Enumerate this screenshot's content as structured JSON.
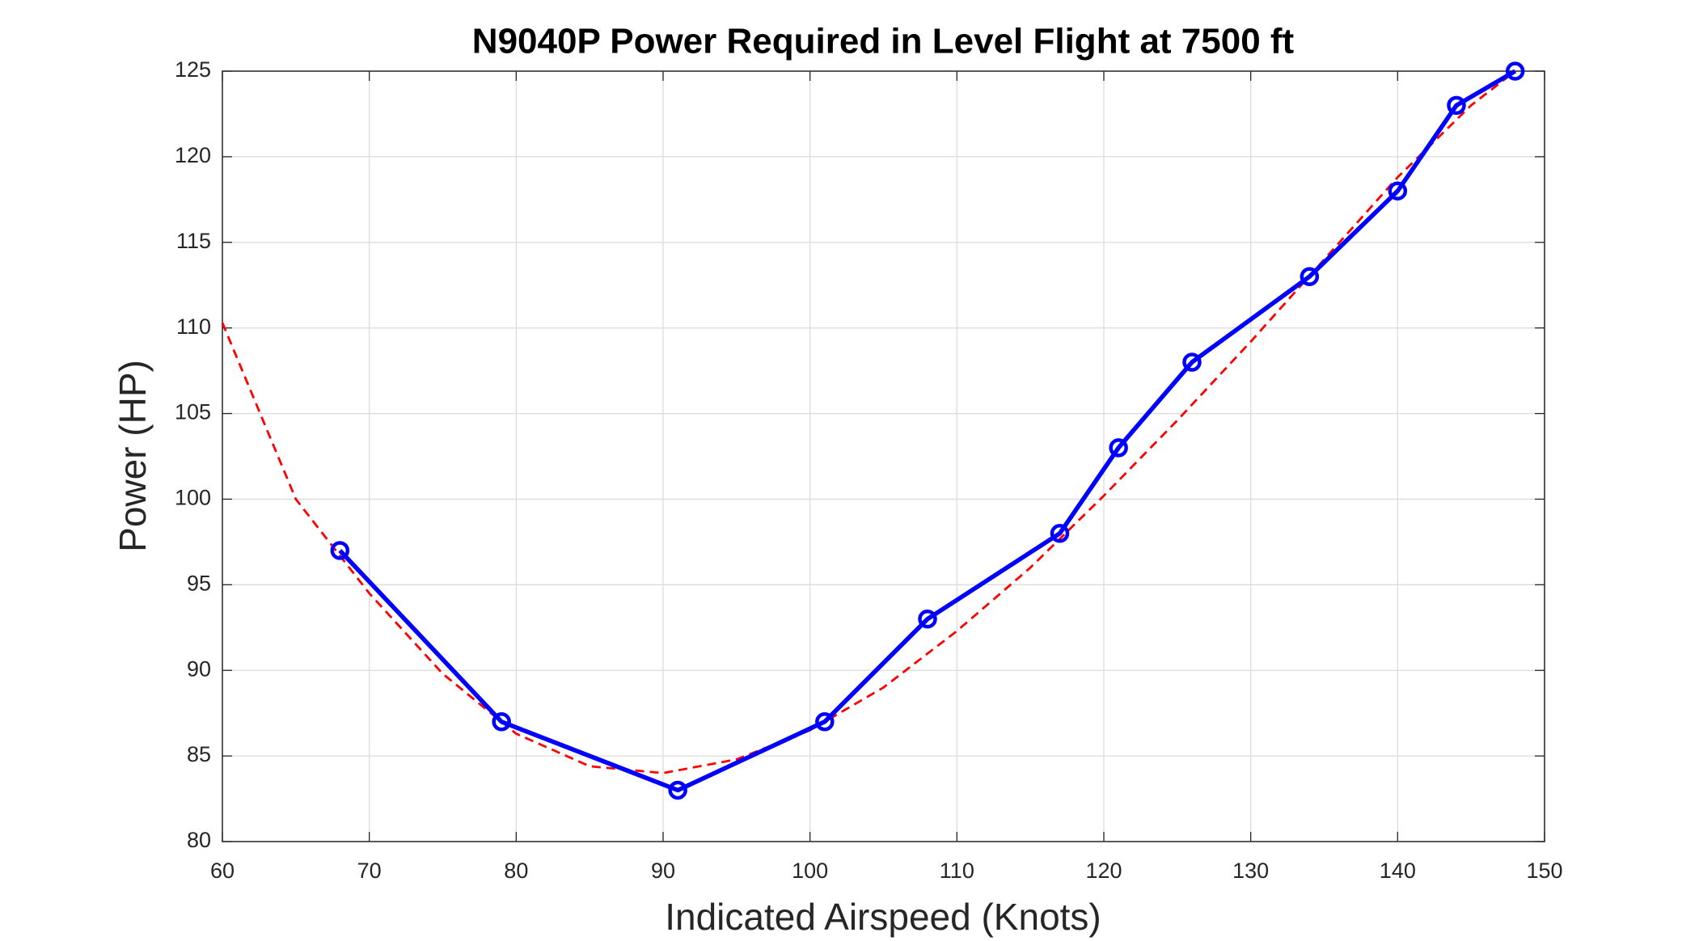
{
  "chart_data": {
    "type": "line",
    "title": "N9040P Power Required in Level Flight at 7500 ft",
    "x_label": "Indicated Airspeed (Knots)",
    "y_label": "Power (HP)",
    "series": [
      {
        "color": "#0000ff",
        "line_style": "solid",
        "marker": "circle",
        "x": [
          68,
          79,
          91,
          101,
          108,
          117,
          121,
          126,
          134,
          140,
          144,
          148
        ],
        "values": [
          97,
          87,
          83,
          87,
          93,
          98,
          103,
          108,
          113,
          118,
          123,
          125
        ]
      },
      {
        "color": "#ff0000",
        "line_style": "dashed",
        "x": [
          60,
          65,
          70,
          75,
          80,
          85,
          90,
          95,
          100,
          105,
          110,
          115,
          120,
          125,
          130,
          135,
          140,
          145,
          148
        ],
        "values": [
          110.3,
          100,
          94.5,
          89.8,
          86.3,
          84.4,
          84,
          84.8,
          86.5,
          89,
          92.3,
          96,
          100.2,
          104.6,
          109.2,
          114,
          118.8,
          123,
          125
        ]
      }
    ],
    "xlim": [
      60,
      150
    ],
    "xticks": [
      60,
      70,
      80,
      90,
      100,
      110,
      120,
      130,
      140,
      150
    ],
    "ylim": [
      80,
      125
    ],
    "yticks": [
      80,
      85,
      90,
      95,
      100,
      105,
      110,
      115,
      120,
      125
    ],
    "grid": true
  }
}
